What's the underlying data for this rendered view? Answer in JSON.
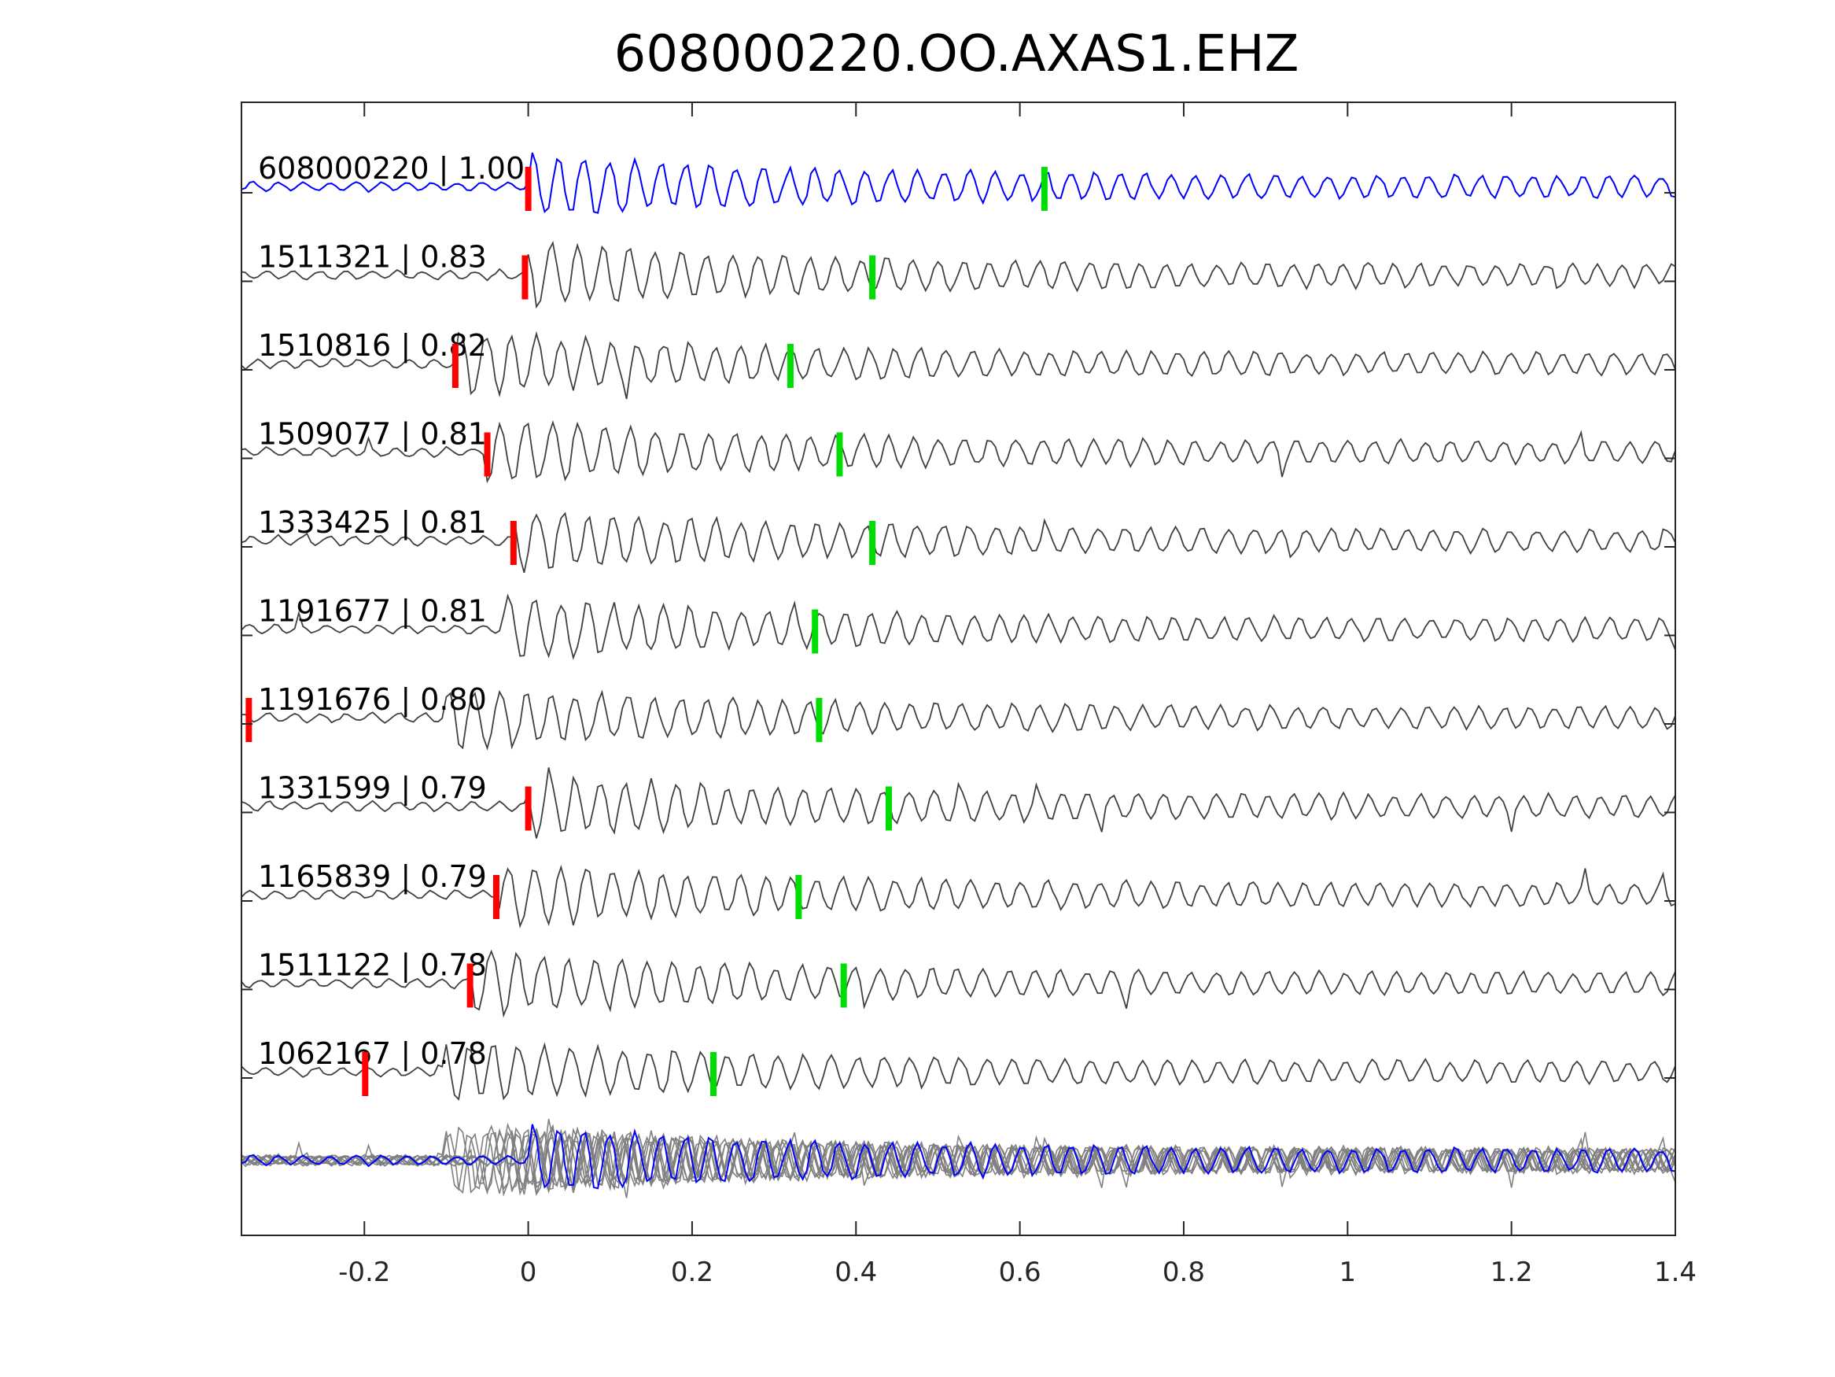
{
  "chart_data": {
    "type": "line",
    "title": "608000220.OO.AXAS1.EHZ",
    "xlabel": "",
    "ylabel": "",
    "xlim": [
      -0.35,
      1.4
    ],
    "xticks": [
      -0.2,
      0,
      0.2,
      0.4,
      0.6,
      0.8,
      1,
      1.2,
      1.4
    ],
    "xtick_labels": [
      "-0.2",
      "0",
      "0.2",
      "0.4",
      "0.6",
      "0.8",
      "1",
      "1.2",
      "1.4"
    ],
    "grid": false,
    "colors": {
      "template": "#0000ff",
      "trace": "#404040",
      "stack": "#808080",
      "p_pick": "#ff0000",
      "s_pick": "#00dd00",
      "axis": "#262626"
    },
    "series": [
      {
        "label": "608000220 | 1.00",
        "id": "608000220",
        "cc": "1.00",
        "p_pick": 0.0,
        "s_pick": 0.63,
        "template": true
      },
      {
        "label": "1511321 | 0.83",
        "id": "1511321",
        "cc": "0.83",
        "p_pick": -0.004,
        "s_pick": 0.42
      },
      {
        "label": "1510816 | 0.82",
        "id": "1510816",
        "cc": "0.82",
        "p_pick": -0.089,
        "s_pick": 0.32
      },
      {
        "label": "1509077 | 0.81",
        "id": "1509077",
        "cc": "0.81",
        "p_pick": -0.05,
        "s_pick": 0.38
      },
      {
        "label": "1333425 | 0.81",
        "id": "1333425",
        "cc": "0.81",
        "p_pick": -0.018,
        "s_pick": 0.42
      },
      {
        "label": "1191677 | 0.81",
        "id": "1191677",
        "cc": "0.81",
        "p_pick": null,
        "s_pick": 0.35
      },
      {
        "label": "1191676 | 0.80",
        "id": "1191676",
        "cc": "0.80",
        "p_pick": -0.341,
        "s_pick": 0.355
      },
      {
        "label": "1331599 | 0.79",
        "id": "1331599",
        "cc": "0.79",
        "p_pick": 0.0,
        "s_pick": 0.44
      },
      {
        "label": "1165839 | 0.79",
        "id": "1165839",
        "cc": "0.79",
        "p_pick": -0.039,
        "s_pick": 0.33
      },
      {
        "label": "1511122 | 0.78",
        "id": "1511122",
        "cc": "0.78",
        "p_pick": -0.071,
        "s_pick": 0.385
      },
      {
        "label": "1062167 | 0.78",
        "id": "1062167",
        "cc": "0.78",
        "p_pick": -0.199,
        "s_pick": 0.226
      }
    ],
    "stack": {
      "description_visible": false
    }
  }
}
